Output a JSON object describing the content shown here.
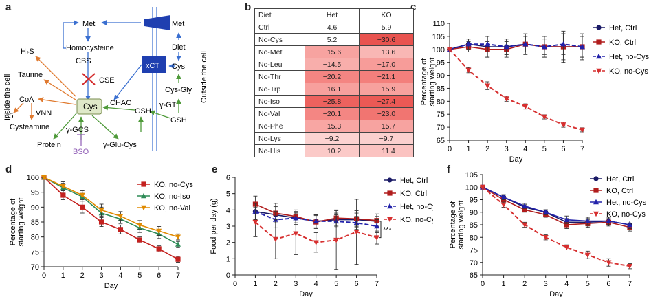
{
  "panel_labels": {
    "a": "a",
    "b": "b",
    "c": "c",
    "d": "d",
    "e": "e",
    "f": "f"
  },
  "diagram_a": {
    "inside_label": "Inside the cell",
    "outside_label": "Outside the cell",
    "nodes": {
      "met": "Met",
      "homocysteine": "Homocysteine",
      "cbs": "CBS",
      "cse": "CSE",
      "h2s": "H₂S",
      "taurine": "Taurine",
      "coa": "CoA",
      "b5": "B5",
      "vnn": "VNN",
      "cysteamine": "Cysteamine",
      "cys": "Cys",
      "chac": "CHAC",
      "gsh": "GSH",
      "ggcs": "γ-GCS",
      "bso": "BSO",
      "protein": "Protein",
      "gglucys": "γ-Glu-Cys",
      "met_out": "Met",
      "diet": "Diet",
      "xct": "xCT",
      "cys_out": "Cys",
      "cysgly": "Cys-Gly",
      "ggt": "γ-GT",
      "gsh_out": "GSH"
    }
  },
  "table_b": {
    "headers": [
      "Diet",
      "Het",
      "KO"
    ],
    "rows": [
      {
        "diet": "Ctrl",
        "het": "4.6",
        "ko": "5.9",
        "het_color": "#ffffff",
        "ko_color": "#ffffff"
      },
      {
        "diet": "No-Cys",
        "het": "5.2",
        "ko": "−30.6",
        "het_color": "#ffffff",
        "ko_color": "#e8534f"
      },
      {
        "diet": "No-Met",
        "het": "−15.6",
        "ko": "−13.6",
        "het_color": "#f7a3a0",
        "ko_color": "#f9b7b4"
      },
      {
        "diet": "No-Leu",
        "het": "−14.5",
        "ko": "−17.0",
        "het_color": "#f8aeab",
        "ko_color": "#f79c99"
      },
      {
        "diet": "No-Thr",
        "het": "−20.2",
        "ko": "−21.1",
        "het_color": "#f48582",
        "ko_color": "#f37f7c"
      },
      {
        "diet": "No-Trp",
        "het": "−16.1",
        "ko": "−15.9",
        "het_color": "#f7a09d",
        "ko_color": "#f7a19e"
      },
      {
        "diet": "No-Iso",
        "het": "−25.8",
        "ko": "−27.4",
        "het_color": "#ed625e",
        "ko_color": "#eb5955"
      },
      {
        "diet": "No-Val",
        "het": "−20.1",
        "ko": "−23.0",
        "het_color": "#f48683",
        "ko_color": "#f17571"
      },
      {
        "diet": "No-Phe",
        "het": "−15.3",
        "ko": "−15.7",
        "het_color": "#f8a6a3",
        "ko_color": "#f7a3a0"
      },
      {
        "diet": "No-Lys",
        "het": "−9.2",
        "ko": "−9.7",
        "het_color": "#fcd3d1",
        "ko_color": "#fbd0ce"
      },
      {
        "diet": "No-His",
        "het": "−10.2",
        "ko": "−11.4",
        "het_color": "#fbcac8",
        "ko_color": "#fbc3c1"
      }
    ]
  },
  "chart_data": [
    {
      "id": "c",
      "type": "line",
      "xlabel": "Day",
      "ylabel": "Percentage of starting weight",
      "xlim": [
        0,
        7
      ],
      "ylim": [
        65,
        110
      ],
      "xticks": [
        "0",
        "1",
        "2",
        "3",
        "4",
        "5",
        "6",
        "7"
      ],
      "yticks": [
        "65",
        "70",
        "75",
        "80",
        "85",
        "90",
        "95",
        "100",
        "105",
        "110"
      ],
      "x": [
        0,
        1,
        2,
        3,
        4,
        5,
        6,
        7
      ],
      "series": [
        {
          "name": "Het, Ctrl",
          "color": "#1a1a66",
          "marker": "circle",
          "dash": false,
          "values": [
            100,
            102,
            101,
            101,
            102,
            101,
            101,
            101
          ],
          "err": [
            0,
            2,
            4,
            3,
            4,
            4,
            6,
            5
          ]
        },
        {
          "name": "KO, Ctrl",
          "color": "#b01c1c",
          "marker": "square",
          "dash": false,
          "values": [
            100,
            101,
            100,
            100,
            102,
            101,
            101,
            101
          ],
          "err": [
            0,
            2,
            3,
            3,
            3,
            4,
            5,
            4
          ]
        },
        {
          "name": "Het, no-Cys",
          "color": "#2222aa",
          "marker": "triangle",
          "dash": true,
          "values": [
            100,
            102,
            102,
            101,
            102,
            101,
            102,
            101
          ],
          "err": [
            0,
            2,
            3,
            3,
            3,
            3,
            4,
            4
          ]
        },
        {
          "name": "KO, no-Cys",
          "color": "#d62f2f",
          "marker": "tridown",
          "dash": true,
          "values": [
            100,
            92,
            86,
            81,
            78,
            74,
            71,
            69
          ],
          "err": [
            0,
            1,
            1.5,
            1,
            1,
            0.8,
            1,
            0.8
          ]
        }
      ]
    },
    {
      "id": "d",
      "type": "line",
      "xlabel": "Day",
      "ylabel": "Percentage of starting weight",
      "xlim": [
        0,
        7
      ],
      "ylim": [
        70,
        100
      ],
      "xticks": [
        "0",
        "1",
        "2",
        "3",
        "4",
        "5",
        "6",
        "7"
      ],
      "yticks": [
        "70",
        "75",
        "80",
        "85",
        "90",
        "95",
        "100"
      ],
      "x": [
        0,
        1,
        2,
        3,
        4,
        5,
        6,
        7
      ],
      "series": [
        {
          "name": "KO, no-Cys",
          "color": "#c4211f",
          "marker": "square",
          "dash": false,
          "values": [
            100,
            94,
            90,
            85,
            82.5,
            79,
            76,
            72.5
          ],
          "err": [
            0,
            1.5,
            2,
            1.5,
            1.5,
            1,
            1,
            1
          ]
        },
        {
          "name": "KO, no-Iso",
          "color": "#2e8b57",
          "marker": "triangle",
          "dash": false,
          "values": [
            100,
            96.5,
            93.5,
            88,
            86,
            83,
            81,
            77.5
          ],
          "err": [
            0,
            1.5,
            1.5,
            2,
            1.5,
            1.5,
            1.5,
            1
          ]
        },
        {
          "name": "KO, no-Val",
          "color": "#e08a00",
          "marker": "tridown",
          "dash": false,
          "values": [
            100,
            97,
            94,
            89,
            87,
            84,
            82,
            80
          ],
          "err": [
            0,
            1.5,
            1.5,
            2,
            1.5,
            1.5,
            1.5,
            1
          ]
        }
      ]
    },
    {
      "id": "e",
      "type": "line",
      "xlabel": "Day",
      "ylabel": "Food per day (g)",
      "xlim": [
        0,
        7
      ],
      "ylim": [
        0,
        6
      ],
      "xticks": [
        "0",
        "1",
        "2",
        "3",
        "4",
        "5",
        "6",
        "7"
      ],
      "yticks": [
        "0",
        "1",
        "2",
        "3",
        "4",
        "5",
        "6"
      ],
      "x": [
        1,
        2,
        3,
        4,
        5,
        6,
        7
      ],
      "annotation": "***",
      "series": [
        {
          "name": "Het, Ctrl",
          "color": "#1a1a66",
          "marker": "circle",
          "dash": false,
          "values": [
            3.9,
            3.7,
            3.5,
            3.3,
            3.4,
            3.4,
            3.3
          ],
          "err": [
            0.5,
            0.5,
            0.3,
            0.4,
            0.4,
            0.4,
            0.3
          ]
        },
        {
          "name": "KO, Ctrl",
          "color": "#b01c1c",
          "marker": "square",
          "dash": false,
          "values": [
            4.35,
            3.8,
            3.6,
            3.25,
            3.5,
            3.45,
            3.35
          ],
          "err": [
            0.5,
            0.6,
            0.4,
            0.4,
            0.5,
            0.5,
            0.4
          ]
        },
        {
          "name": "Het, no-Cys",
          "color": "#2222aa",
          "marker": "triangle",
          "dash": true,
          "values": [
            3.9,
            3.4,
            3.5,
            3.3,
            3.3,
            3.2,
            3.0
          ],
          "err": [
            0.5,
            0.5,
            0.4,
            0.4,
            0.4,
            0.4,
            0.4
          ]
        },
        {
          "name": "KO, no-Cys",
          "color": "#d62f2f",
          "marker": "tridown",
          "dash": true,
          "values": [
            3.25,
            2.2,
            2.55,
            2.0,
            2.15,
            2.65,
            2.3
          ],
          "err": [
            0.9,
            1.2,
            1.3,
            0.6,
            1.8,
            2.0,
            0.4
          ]
        }
      ]
    },
    {
      "id": "f",
      "type": "line",
      "xlabel": "Day",
      "ylabel": "Percentage of starting weight",
      "xlim": [
        0,
        7
      ],
      "ylim": [
        65,
        105
      ],
      "xticks": [
        "0",
        "1",
        "2",
        "3",
        "4",
        "5",
        "6",
        "7"
      ],
      "yticks": [
        "65",
        "70",
        "75",
        "80",
        "85",
        "90",
        "95",
        "100",
        "105"
      ],
      "x": [
        0,
        1,
        2,
        3,
        4,
        5,
        6,
        7
      ],
      "series": [
        {
          "name": "Het, Ctrl",
          "color": "#1a1a66",
          "marker": "circle",
          "dash": false,
          "values": [
            100,
            96,
            92,
            90,
            86,
            86,
            86.5,
            85
          ],
          "err": [
            0,
            1,
            1,
            1,
            1.5,
            1.5,
            1.5,
            1.5
          ]
        },
        {
          "name": "KO, Ctrl",
          "color": "#b01c1c",
          "marker": "square",
          "dash": false,
          "values": [
            100,
            95,
            91,
            89,
            85,
            85.5,
            86,
            84
          ],
          "err": [
            0,
            1,
            1,
            1,
            1.5,
            1.5,
            1.5,
            1.5
          ]
        },
        {
          "name": "Het, no-Cys",
          "color": "#2222aa",
          "marker": "triangle",
          "dash": false,
          "values": [
            100,
            96,
            92.5,
            90,
            87,
            86.5,
            86.5,
            85
          ],
          "err": [
            0,
            1,
            1,
            1,
            1.5,
            1.5,
            1.5,
            1.5
          ]
        },
        {
          "name": "KO, no-Cys",
          "color": "#d62f2f",
          "marker": "tridown",
          "dash": true,
          "values": [
            100,
            93,
            85,
            80,
            76,
            73,
            70,
            68.5
          ],
          "err": [
            0,
            1,
            1,
            1,
            1,
            1.5,
            1.5,
            1
          ]
        }
      ]
    }
  ]
}
